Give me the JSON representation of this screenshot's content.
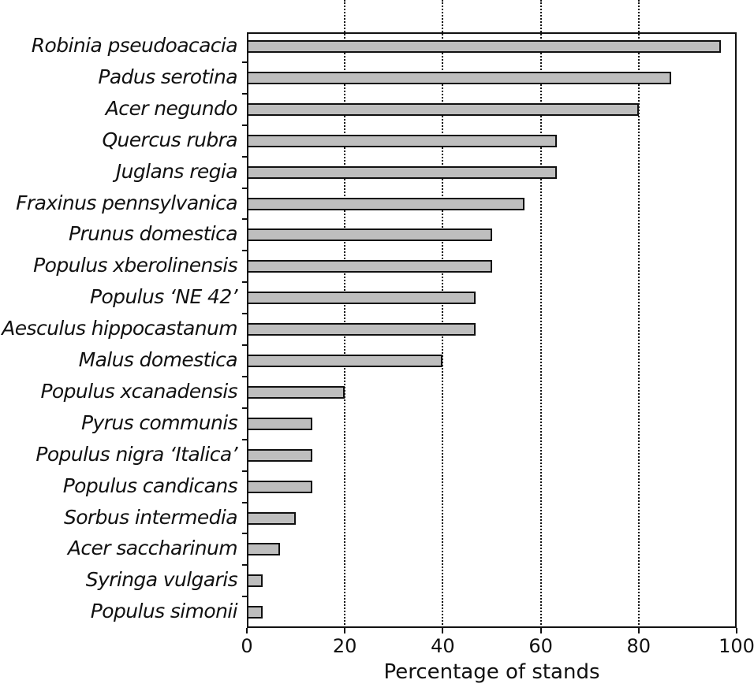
{
  "chart_data": {
    "type": "bar",
    "orientation": "horizontal",
    "title": "",
    "xlabel": "Percentage of stands",
    "ylabel": "",
    "xlim": [
      0,
      100
    ],
    "xticks": [
      0,
      20,
      40,
      60,
      80,
      100
    ],
    "grid": {
      "x": true,
      "style": "dotted",
      "positions": [
        20,
        40,
        60,
        80
      ]
    },
    "legend": null,
    "bar_color": "#bebebe",
    "bar_edge_color": "#111111",
    "categories": [
      "Robinia pseudoacacia",
      "Padus serotina",
      "Acer negundo",
      "Quercus rubra",
      "Juglans regia",
      "Fraxinus pennsylvanica",
      "Prunus domestica",
      "Populus xberolinensis",
      "Populus ‘NE 42’",
      "Aesculus hippocastanum",
      "Malus domestica",
      "Populus xcanadensis",
      "Pyrus communis",
      "Populus nigra ‘Italica’",
      "Populus candicans",
      "Sorbus intermedia",
      "Acer saccharinum",
      "Syringa vulgaris",
      "Populus simonii"
    ],
    "values": [
      96.7,
      86.7,
      80.0,
      63.3,
      63.3,
      56.7,
      50.0,
      50.0,
      46.7,
      46.7,
      40.0,
      20.0,
      13.3,
      13.3,
      13.3,
      10.0,
      6.7,
      3.3,
      3.3
    ]
  },
  "axis": {
    "x_tick_labels": [
      "0",
      "20",
      "40",
      "60",
      "80",
      "100"
    ],
    "x_title": "Percentage of stands"
  }
}
